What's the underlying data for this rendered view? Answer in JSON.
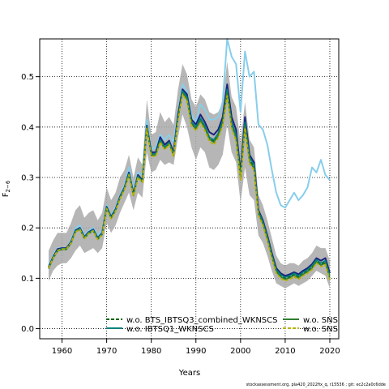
{
  "chart_data": {
    "type": "line",
    "xlabel": "Years",
    "ylabel": "F2-6",
    "ylabel_main": "F",
    "ylabel_sub": "2−6",
    "xlim": [
      1955,
      2022
    ],
    "ylim": [
      -0.02,
      0.575
    ],
    "xticks": [
      1960,
      1970,
      1980,
      1990,
      2000,
      2010,
      2020
    ],
    "yticks": [
      0.0,
      0.1,
      0.2,
      0.3,
      0.4,
      0.5
    ],
    "xtick_labels": [
      "1960",
      "1970",
      "1980",
      "1990",
      "2000",
      "2010",
      "2020"
    ],
    "ytick_labels": [
      "0.0",
      "0.1",
      "0.2",
      "0.3",
      "0.4",
      "0.5"
    ],
    "grid": true,
    "legend_position": "bottom-center",
    "band": {
      "x": [
        1957,
        1958,
        1959,
        1960,
        1961,
        1962,
        1963,
        1964,
        1965,
        1966,
        1967,
        1968,
        1969,
        1970,
        1971,
        1972,
        1973,
        1974,
        1975,
        1976,
        1977,
        1978,
        1979,
        1980,
        1981,
        1982,
        1983,
        1984,
        1985,
        1986,
        1987,
        1988,
        1989,
        1990,
        1991,
        1992,
        1993,
        1994,
        1995,
        1996,
        1997,
        1998,
        1999,
        2000,
        2001,
        2002,
        2003,
        2004,
        2005,
        2006,
        2007,
        2008,
        2009,
        2010,
        2011,
        2012,
        2013,
        2014,
        2015,
        2016,
        2017,
        2018,
        2019,
        2020
      ],
      "upper": [
        0.155,
        0.175,
        0.19,
        0.19,
        0.19,
        0.21,
        0.235,
        0.245,
        0.22,
        0.23,
        0.235,
        0.215,
        0.23,
        0.28,
        0.255,
        0.27,
        0.3,
        0.315,
        0.345,
        0.3,
        0.34,
        0.325,
        0.455,
        0.385,
        0.39,
        0.43,
        0.41,
        0.42,
        0.405,
        0.475,
        0.525,
        0.505,
        0.455,
        0.44,
        0.465,
        0.455,
        0.43,
        0.425,
        0.43,
        0.45,
        0.53,
        0.46,
        0.44,
        0.37,
        0.45,
        0.375,
        0.36,
        0.265,
        0.245,
        0.215,
        0.18,
        0.145,
        0.13,
        0.125,
        0.13,
        0.13,
        0.125,
        0.135,
        0.14,
        0.15,
        0.165,
        0.16,
        0.16,
        0.135
      ],
      "lower": [
        0.095,
        0.115,
        0.125,
        0.13,
        0.13,
        0.14,
        0.155,
        0.165,
        0.15,
        0.155,
        0.16,
        0.15,
        0.16,
        0.21,
        0.19,
        0.205,
        0.23,
        0.25,
        0.27,
        0.235,
        0.27,
        0.26,
        0.35,
        0.31,
        0.315,
        0.335,
        0.325,
        0.33,
        0.325,
        0.38,
        0.425,
        0.4,
        0.36,
        0.335,
        0.36,
        0.35,
        0.32,
        0.315,
        0.325,
        0.345,
        0.405,
        0.35,
        0.33,
        0.25,
        0.32,
        0.265,
        0.255,
        0.185,
        0.17,
        0.145,
        0.115,
        0.09,
        0.085,
        0.08,
        0.085,
        0.09,
        0.085,
        0.09,
        0.095,
        0.105,
        0.115,
        0.11,
        0.105,
        0.08
      ]
    },
    "x": [
      1957,
      1958,
      1959,
      1960,
      1961,
      1962,
      1963,
      1964,
      1965,
      1966,
      1967,
      1968,
      1969,
      1970,
      1971,
      1972,
      1973,
      1974,
      1975,
      1976,
      1977,
      1978,
      1979,
      1980,
      1981,
      1982,
      1983,
      1984,
      1985,
      1986,
      1987,
      1988,
      1989,
      1990,
      1991,
      1992,
      1993,
      1994,
      1995,
      1996,
      1997,
      1998,
      1999,
      2000,
      2001,
      2002,
      2003,
      2004,
      2005,
      2006,
      2007,
      2008,
      2009,
      2010,
      2011,
      2012,
      2013,
      2014,
      2015,
      2016,
      2017,
      2018,
      2019,
      2020
    ],
    "series": [
      {
        "name": "light-blue series (no legend entry)",
        "legend": false,
        "color": "#87ceeb",
        "width": 2,
        "values": [
          0.125,
          0.145,
          0.16,
          0.16,
          0.16,
          0.175,
          0.2,
          0.205,
          0.185,
          0.195,
          0.2,
          0.185,
          0.195,
          0.245,
          0.225,
          0.24,
          0.265,
          0.285,
          0.32,
          0.275,
          0.31,
          0.305,
          0.415,
          0.355,
          0.36,
          0.385,
          0.375,
          0.385,
          0.37,
          0.43,
          0.485,
          0.47,
          0.425,
          0.41,
          0.445,
          0.435,
          0.415,
          0.415,
          0.42,
          0.45,
          0.575,
          0.54,
          0.525,
          0.43,
          0.55,
          0.5,
          0.51,
          0.405,
          0.395,
          0.365,
          0.315,
          0.27,
          0.245,
          0.24,
          0.255,
          0.27,
          0.255,
          0.265,
          0.28,
          0.32,
          0.31,
          0.335,
          0.305,
          0.295
        ]
      },
      {
        "name": "dark-blue series (no legend entry)",
        "legend": false,
        "color": "#1a237e",
        "width": 2,
        "values": [
          0.122,
          0.142,
          0.158,
          0.16,
          0.16,
          0.172,
          0.195,
          0.2,
          0.182,
          0.192,
          0.197,
          0.18,
          0.19,
          0.242,
          0.222,
          0.237,
          0.262,
          0.28,
          0.31,
          0.268,
          0.305,
          0.295,
          0.403,
          0.35,
          0.35,
          0.38,
          0.365,
          0.373,
          0.35,
          0.425,
          0.475,
          0.465,
          0.415,
          0.405,
          0.425,
          0.41,
          0.39,
          0.385,
          0.395,
          0.42,
          0.485,
          0.42,
          0.395,
          0.31,
          0.42,
          0.345,
          0.33,
          0.235,
          0.215,
          0.185,
          0.15,
          0.12,
          0.11,
          0.105,
          0.108,
          0.112,
          0.108,
          0.115,
          0.12,
          0.128,
          0.14,
          0.135,
          0.14,
          0.11
        ]
      },
      {
        "name": "w.o. BTS_IBTSQ3_combined_WKNSCS",
        "legend": true,
        "color": "#006400",
        "width": 1.6,
        "dash": "4,2",
        "values": [
          0.12,
          0.14,
          0.155,
          0.158,
          0.158,
          0.17,
          0.193,
          0.198,
          0.18,
          0.19,
          0.195,
          0.178,
          0.188,
          0.24,
          0.22,
          0.235,
          0.26,
          0.278,
          0.307,
          0.265,
          0.302,
          0.292,
          0.4,
          0.345,
          0.345,
          0.373,
          0.358,
          0.368,
          0.345,
          0.418,
          0.47,
          0.457,
          0.408,
          0.398,
          0.415,
          0.4,
          0.378,
          0.372,
          0.385,
          0.41,
          0.47,
          0.405,
          0.38,
          0.3,
          0.405,
          0.335,
          0.32,
          0.23,
          0.21,
          0.18,
          0.145,
          0.115,
          0.105,
          0.1,
          0.103,
          0.108,
          0.103,
          0.11,
          0.115,
          0.122,
          0.135,
          0.128,
          0.132,
          0.102
        ]
      },
      {
        "name": "w.o. IBTSQ1_WKNSCS",
        "legend": true,
        "color": "#008080",
        "width": 1.6,
        "values": [
          0.121,
          0.141,
          0.156,
          0.159,
          0.159,
          0.171,
          0.194,
          0.199,
          0.181,
          0.191,
          0.196,
          0.179,
          0.189,
          0.241,
          0.221,
          0.236,
          0.261,
          0.279,
          0.308,
          0.266,
          0.303,
          0.293,
          0.401,
          0.347,
          0.347,
          0.375,
          0.36,
          0.37,
          0.347,
          0.42,
          0.472,
          0.46,
          0.41,
          0.4,
          0.418,
          0.403,
          0.38,
          0.375,
          0.388,
          0.413,
          0.475,
          0.41,
          0.385,
          0.305,
          0.41,
          0.34,
          0.325,
          0.232,
          0.212,
          0.182,
          0.147,
          0.117,
          0.107,
          0.102,
          0.105,
          0.11,
          0.105,
          0.112,
          0.117,
          0.125,
          0.137,
          0.13,
          0.135,
          0.105
        ]
      },
      {
        "name": "w.o. SNS",
        "legend": true,
        "color": "#2e7d32",
        "width": 1.6,
        "values": [
          0.119,
          0.139,
          0.154,
          0.157,
          0.157,
          0.169,
          0.192,
          0.197,
          0.179,
          0.189,
          0.194,
          0.177,
          0.187,
          0.239,
          0.219,
          0.234,
          0.259,
          0.277,
          0.306,
          0.264,
          0.301,
          0.291,
          0.399,
          0.344,
          0.344,
          0.372,
          0.357,
          0.367,
          0.344,
          0.417,
          0.468,
          0.455,
          0.406,
          0.396,
          0.413,
          0.398,
          0.376,
          0.37,
          0.383,
          0.408,
          0.468,
          0.402,
          0.378,
          0.298,
          0.402,
          0.332,
          0.318,
          0.228,
          0.208,
          0.178,
          0.143,
          0.113,
          0.103,
          0.098,
          0.101,
          0.106,
          0.101,
          0.108,
          0.113,
          0.12,
          0.133,
          0.126,
          0.13,
          0.1
        ]
      },
      {
        "name": "w.o. SNS",
        "legend": true,
        "color": "#b8b000",
        "width": 1.8,
        "dash": "4,2",
        "values": [
          0.12,
          0.14,
          0.155,
          0.158,
          0.158,
          0.17,
          0.192,
          0.197,
          0.179,
          0.189,
          0.194,
          0.177,
          0.187,
          0.238,
          0.218,
          0.233,
          0.258,
          0.276,
          0.305,
          0.263,
          0.3,
          0.29,
          0.397,
          0.342,
          0.342,
          0.37,
          0.355,
          0.365,
          0.342,
          0.414,
          0.465,
          0.452,
          0.403,
          0.393,
          0.408,
          0.393,
          0.372,
          0.365,
          0.378,
          0.403,
          0.462,
          0.398,
          0.373,
          0.295,
          0.398,
          0.328,
          0.315,
          0.225,
          0.205,
          0.175,
          0.14,
          0.11,
          0.1,
          0.095,
          0.098,
          0.103,
          0.098,
          0.105,
          0.11,
          0.117,
          0.13,
          0.123,
          0.127,
          0.097
        ]
      }
    ]
  },
  "footer_text": "stockassessment.org, pla420_2022fix_q, r15536 ; git: ec2c2a0c6dde"
}
